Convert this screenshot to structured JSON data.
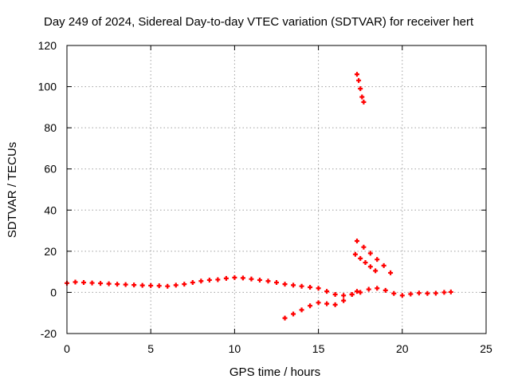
{
  "chart_data": {
    "type": "scatter",
    "title": "Day 249 of 2024, Sidereal Day-to-day VTEC variation (SDTVAR) for receiver hert",
    "xlabel": "GPS time / hours",
    "ylabel": "SDTVAR / TECUs",
    "xlim": [
      0,
      25
    ],
    "ylim": [
      -20,
      120
    ],
    "x_ticks": [
      "0",
      "5",
      "10",
      "15",
      "20",
      "25"
    ],
    "y_ticks": [
      "-20",
      "0",
      "20",
      "40",
      "60",
      "80",
      "100",
      "120"
    ],
    "grid": true,
    "marker": "plus",
    "series_color": "#ff0000",
    "series": [
      {
        "points": [
          [
            0.0,
            4.5
          ],
          [
            0.5,
            5.0
          ],
          [
            1.0,
            4.8
          ],
          [
            1.5,
            4.6
          ],
          [
            2.0,
            4.4
          ],
          [
            2.5,
            4.2
          ],
          [
            3.0,
            4.0
          ],
          [
            3.5,
            3.8
          ],
          [
            4.0,
            3.6
          ],
          [
            4.5,
            3.4
          ],
          [
            5.0,
            3.3
          ],
          [
            5.5,
            3.2
          ],
          [
            6.0,
            3.0
          ],
          [
            6.5,
            3.5
          ],
          [
            7.0,
            4.0
          ],
          [
            7.5,
            4.8
          ],
          [
            8.0,
            5.5
          ],
          [
            8.5,
            6.0
          ],
          [
            9.0,
            6.2
          ],
          [
            9.5,
            6.8
          ],
          [
            10.0,
            7.2
          ],
          [
            10.5,
            7.0
          ],
          [
            11.0,
            6.5
          ],
          [
            11.5,
            6.0
          ],
          [
            12.0,
            5.5
          ],
          [
            12.5,
            4.8
          ],
          [
            13.0,
            4.0
          ],
          [
            13.5,
            3.5
          ],
          [
            14.0,
            3.0
          ],
          [
            14.5,
            2.5
          ],
          [
            15.0,
            2.0
          ],
          [
            15.5,
            0.5
          ],
          [
            16.0,
            -1.0
          ],
          [
            16.5,
            -1.5
          ],
          [
            17.0,
            -1.0
          ],
          [
            17.5,
            0.0
          ],
          [
            18.0,
            1.5
          ],
          [
            18.5,
            2.0
          ],
          [
            19.0,
            1.0
          ],
          [
            19.5,
            -0.5
          ],
          [
            20.0,
            -1.5
          ],
          [
            20.5,
            -0.8
          ],
          [
            21.0,
            -0.3
          ],
          [
            21.5,
            -0.5
          ],
          [
            22.0,
            -0.4
          ],
          [
            22.5,
            0.0
          ],
          [
            22.9,
            0.2
          ]
        ]
      },
      {
        "points": [
          [
            13.0,
            -12.5
          ],
          [
            13.5,
            -10.5
          ],
          [
            14.0,
            -8.5
          ],
          [
            14.5,
            -6.5
          ],
          [
            15.0,
            -5.0
          ],
          [
            15.5,
            -5.5
          ],
          [
            16.0,
            -6.0
          ],
          [
            16.5,
            -4.0
          ],
          [
            17.0,
            -1.0
          ],
          [
            17.3,
            0.5
          ]
        ]
      },
      {
        "points": [
          [
            17.3,
            106
          ],
          [
            17.4,
            103
          ],
          [
            17.5,
            99
          ],
          [
            17.6,
            95
          ],
          [
            17.7,
            92.5
          ]
        ]
      },
      {
        "points": [
          [
            17.3,
            25
          ],
          [
            17.7,
            22
          ],
          [
            18.1,
            19
          ],
          [
            18.5,
            16
          ],
          [
            18.9,
            13
          ],
          [
            19.3,
            9.5
          ]
        ]
      },
      {
        "points": [
          [
            17.2,
            18.5
          ],
          [
            17.5,
            16.5
          ],
          [
            17.8,
            14.5
          ],
          [
            18.1,
            12.5
          ],
          [
            18.4,
            10.5
          ]
        ]
      }
    ]
  }
}
